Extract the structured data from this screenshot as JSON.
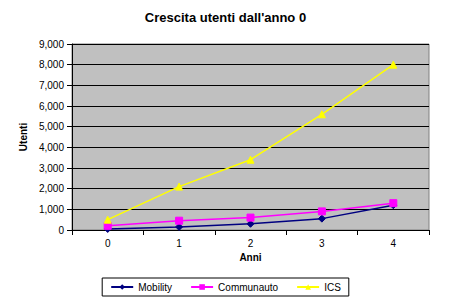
{
  "chart_data": {
    "type": "line",
    "title": "Crescita utenti dall'anno 0",
    "x_label": "Anni",
    "y_label": "Utenti",
    "categories": [
      "0",
      "1",
      "2",
      "3",
      "4"
    ],
    "series": [
      {
        "name": "Mobility",
        "color": "#000080",
        "marker": "diamond",
        "values": [
          50,
          150,
          300,
          550,
          1200
        ]
      },
      {
        "name": "Communauto",
        "color": "#FF00FF",
        "marker": "square",
        "values": [
          200,
          450,
          600,
          900,
          1300
        ]
      },
      {
        "name": "ICS",
        "color": "#FFFF00",
        "marker": "triangle",
        "values": [
          500,
          2100,
          3400,
          5600,
          8000
        ]
      }
    ],
    "ylim": [
      0,
      9000
    ],
    "yticks": [
      0,
      1000,
      2000,
      3000,
      4000,
      5000,
      6000,
      7000,
      8000,
      9000
    ],
    "grid": true,
    "legend": "bottom"
  }
}
